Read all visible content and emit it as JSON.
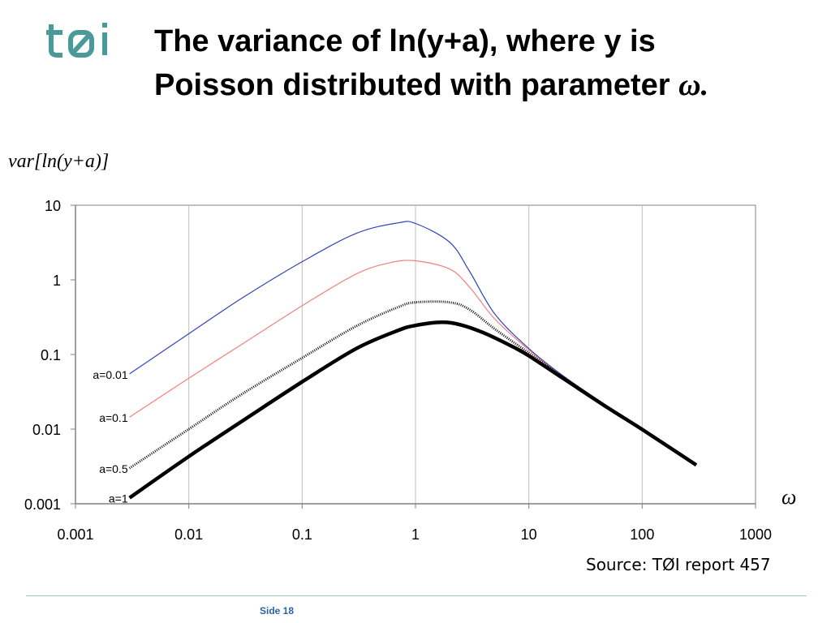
{
  "header": {
    "logo_text": "tøi",
    "title_line1": "The variance of ln(y+a), where y is",
    "title_line2": "Poisson distributed with parameter",
    "title_symbol": "ω."
  },
  "footer": {
    "source": "Source: TØI report 457",
    "page_label": "Side 18"
  },
  "colors": {
    "logo": "#4a9a9a",
    "a_0_01": "#3344bb",
    "a_0_1": "#f08080",
    "a_0_5": "#111111",
    "a_1": "#000000",
    "grid": "#c0c0c0",
    "axis": "#808080",
    "divider": "#9cc7c7",
    "page_label": "#2a63a6"
  },
  "chart_data": {
    "type": "line",
    "title": "",
    "xlabel": "ω",
    "ylabel": "var[ln(y+a)]",
    "xscale": "log",
    "yscale": "log",
    "xlim": [
      0.001,
      1000
    ],
    "ylim": [
      0.001,
      10
    ],
    "xticks": [
      "0.001",
      "0.01",
      "0.1",
      "1",
      "10",
      "100",
      "1000"
    ],
    "yticks": [
      "10",
      "1",
      "0.1",
      "0.01",
      "0.001"
    ],
    "grid": "vertical",
    "series": [
      {
        "name": "a=0.01",
        "style": "thin",
        "x": [
          0.003,
          0.01,
          0.03,
          0.1,
          0.3,
          0.7,
          1,
          2,
          3,
          5,
          10,
          20,
          50,
          100,
          300
        ],
        "y": [
          0.055,
          0.19,
          0.58,
          1.75,
          4.2,
          5.8,
          5.7,
          3.2,
          1.3,
          0.35,
          0.12,
          0.052,
          0.02,
          0.0101,
          0.0033
        ]
      },
      {
        "name": "a=0.1",
        "style": "thin",
        "x": [
          0.003,
          0.01,
          0.03,
          0.1,
          0.3,
          0.6,
          1,
          2,
          3,
          5,
          10,
          20,
          50,
          100,
          300
        ],
        "y": [
          0.0145,
          0.048,
          0.14,
          0.45,
          1.2,
          1.7,
          1.8,
          1.4,
          0.8,
          0.3,
          0.115,
          0.05,
          0.0198,
          0.01,
          0.0033
        ]
      },
      {
        "name": "a=0.5",
        "style": "dotted",
        "x": [
          0.003,
          0.01,
          0.03,
          0.1,
          0.3,
          0.7,
          1,
          2,
          3,
          5,
          10,
          20,
          50,
          100,
          300
        ],
        "y": [
          0.003,
          0.01,
          0.03,
          0.09,
          0.24,
          0.43,
          0.5,
          0.5,
          0.4,
          0.22,
          0.105,
          0.05,
          0.0195,
          0.0099,
          0.0033
        ]
      },
      {
        "name": "a=1",
        "style": "thick",
        "x": [
          0.003,
          0.01,
          0.03,
          0.1,
          0.3,
          0.7,
          1,
          1.7,
          2.5,
          4,
          7,
          10,
          20,
          50,
          100,
          300
        ],
        "y": [
          0.0012,
          0.0043,
          0.013,
          0.043,
          0.12,
          0.21,
          0.245,
          0.27,
          0.25,
          0.195,
          0.13,
          0.096,
          0.048,
          0.0192,
          0.0099,
          0.0033
        ]
      }
    ]
  }
}
